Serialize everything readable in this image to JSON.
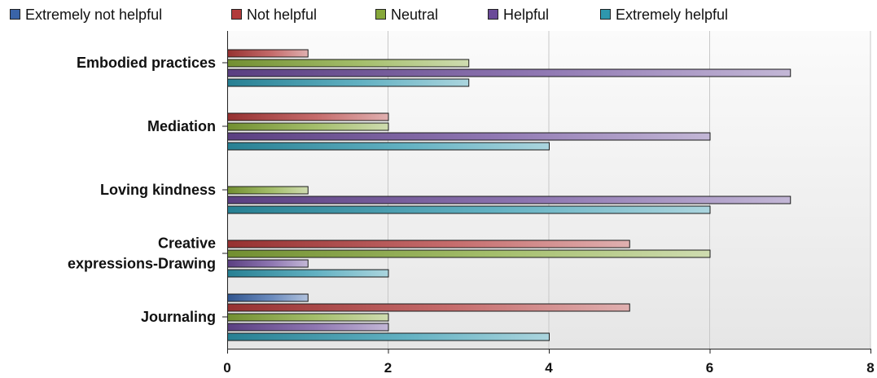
{
  "chart_data": {
    "type": "bar",
    "orientation": "horizontal",
    "categories": [
      "Embodied practices",
      "Mediation",
      "Loving kindness",
      "Creative expressions-Drawing",
      "Journaling"
    ],
    "category_lines": [
      [
        "Embodied practices"
      ],
      [
        "Mediation"
      ],
      [
        "Loving kindness"
      ],
      [
        "Creative",
        "expressions-Drawing"
      ],
      [
        "Journaling"
      ]
    ],
    "series": [
      {
        "name": "Extremely not helpful",
        "color": "#3a64a8",
        "values": [
          0,
          0,
          0,
          0,
          1
        ]
      },
      {
        "name": "Not helpful",
        "color": "#b13a3a",
        "values": [
          1,
          2,
          0,
          5,
          5
        ]
      },
      {
        "name": "Neutral",
        "color": "#86a83a",
        "values": [
          3,
          2,
          1,
          6,
          2
        ]
      },
      {
        "name": "Helpful",
        "color": "#6a4a98",
        "values": [
          7,
          6,
          7,
          1,
          2
        ]
      },
      {
        "name": "Extremely helpful",
        "color": "#2e97ad",
        "values": [
          3,
          4,
          6,
          2,
          4
        ]
      }
    ],
    "xlim": [
      0,
      8
    ],
    "xticks": [
      "0",
      "2",
      "4",
      "6",
      "8"
    ],
    "grid": true,
    "legend": "top"
  }
}
